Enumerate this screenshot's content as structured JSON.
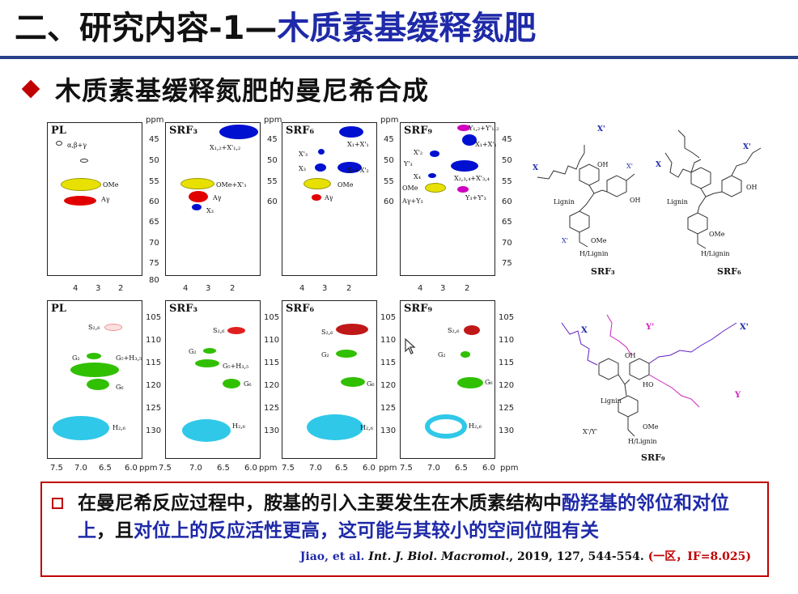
{
  "title": {
    "black": "二、研究内容-1—",
    "blue": "木质素基缓释氮肥"
  },
  "subtitle": "木质素基缓释氮肥的曼尼希合成",
  "figure": {
    "top_row": {
      "panels": [
        {
          "label": "PL",
          "labels": [
            "α,β+γ",
            "OMe",
            "Aγ"
          ]
        },
        {
          "label": "SRF₃",
          "labels": [
            "X₁,₂+X'₁,₂",
            "OMe+X'₃",
            "Aγ",
            "X₃"
          ]
        },
        {
          "label": "SRF₆",
          "labels": [
            "X₁+X'₁",
            "X'₃",
            "X₃",
            "X₂+X'₂",
            "OMe",
            "Aγ"
          ]
        },
        {
          "label": "SRF₉",
          "labels": [
            "Y₁,₂+Y'₁,₂",
            "X₁+X'₁",
            "X'₂",
            "Y'₃",
            "X₂,₃,₄+X'₃,₄",
            "X₄",
            "OMe",
            "Aγ+Y₃",
            "Y₃+Y'₃"
          ]
        }
      ],
      "yticks_group_a": [
        "ppm",
        "45",
        "50",
        "55",
        "60",
        "65",
        "70",
        "75",
        "80"
      ],
      "yticks_group_b": [
        "ppm",
        "45",
        "50",
        "55",
        "60",
        "65",
        "70",
        "75"
      ],
      "xticks": [
        "4",
        "3",
        "2"
      ]
    },
    "bottom_row": {
      "panels": [
        {
          "label": "PL",
          "labels": [
            "S₂,₆",
            "G₂",
            "G₅+H₃,₅",
            "G₆",
            "H₂,₆"
          ]
        },
        {
          "label": "SRF₃",
          "labels": [
            "S₂,₆",
            "G₂",
            "G₅+H₃,₅",
            "G₆",
            "H₂,₆"
          ]
        },
        {
          "label": "SRF₆",
          "labels": [
            "S₂,₆",
            "G₂",
            "G₆",
            "H₂,₆"
          ]
        },
        {
          "label": "SRF₉",
          "labels": [
            "S₂,₆",
            "G₂",
            "G₆",
            "H₂,₆"
          ]
        }
      ],
      "yticks": [
        "105",
        "110",
        "115",
        "120",
        "125",
        "130"
      ],
      "xticks": [
        "7.5",
        "7.0",
        "6.5",
        "6.0"
      ],
      "ppm": "ppm"
    },
    "structures": [
      {
        "label": "SRF₃",
        "marks": [
          "X'",
          "X",
          "OH",
          "X'",
          "OH",
          "OMe",
          "X'",
          "Lignin",
          "H/Lignin"
        ]
      },
      {
        "label": "SRF₆",
        "marks": [
          "X",
          "X'",
          "OH",
          "Lignin",
          "OMe",
          "H/Lignin"
        ]
      },
      {
        "label": "SRF₉",
        "marks": [
          "X",
          "Y'",
          "X'",
          "OH",
          "HO",
          "Y",
          "OMe",
          "X'/Y'",
          "H/Lignin",
          "Lignin"
        ]
      }
    ],
    "colors": {
      "yellow": "#e8e000",
      "red": "#e00000",
      "blue": "#0010d0",
      "magenta": "#d000c0",
      "green": "#30c000",
      "cyan": "#30c8e8",
      "pink": "#f09090",
      "crimson": "#c01818"
    }
  },
  "note": {
    "part1": "在曼尼希反应过程中，胺基的引入主要发生在木质素结构中",
    "part2": "酚羟基的邻位和对位上",
    "part3": "，且",
    "part4": "对位上的反应活性更高，这可能与其较小的空间位阻有关",
    "ref_author": "Jiao, et al.",
    "ref_journal": "Int. J. Biol. Macromol.",
    "ref_detail": ", 2019, 127, 544-554.",
    "ref_rank": "(一区，IF=8.025)"
  }
}
